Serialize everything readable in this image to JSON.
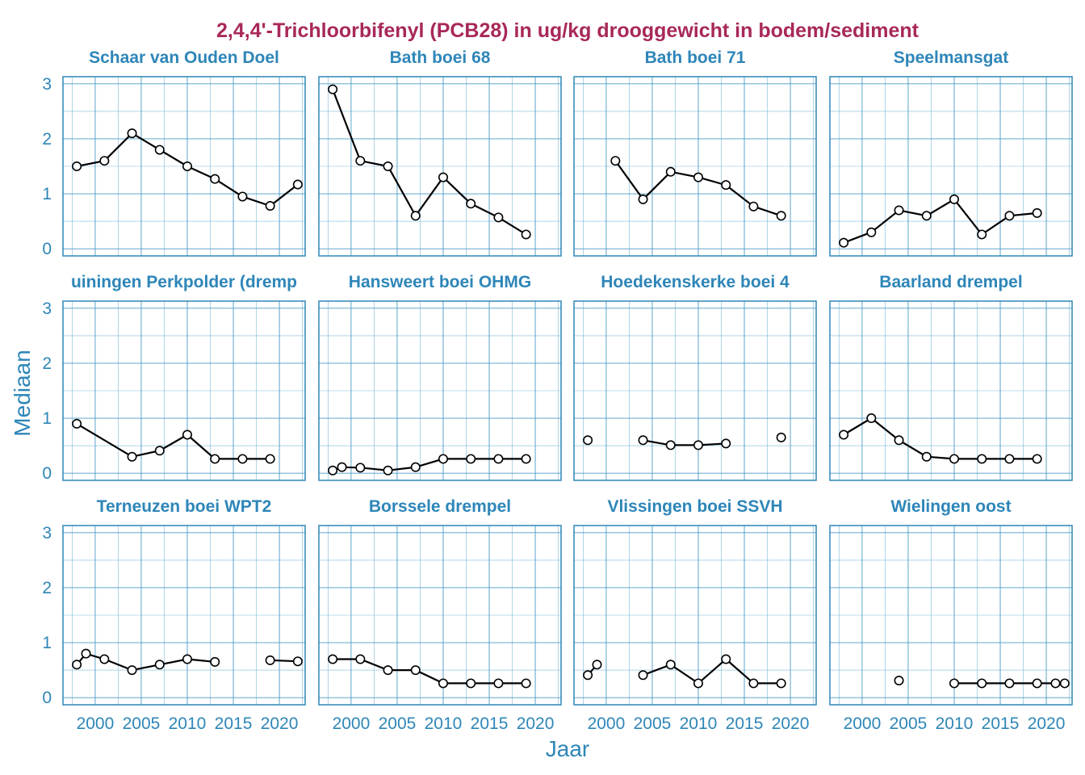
{
  "chart_data": {
    "type": "line",
    "layout": "facet-grid",
    "title": "2,4,4'-Trichloorbifenyl (PCB28) in ug/kg drooggewicht in bodem/sediment",
    "xlabel": "Jaar",
    "ylabel": "Mediaan",
    "xlim": [
      1996.5,
      2022.8
    ],
    "ylim": [
      -0.13,
      3.13
    ],
    "x_ticks": [
      2000,
      2005,
      2010,
      2015,
      2020
    ],
    "y_ticks": [
      0,
      1,
      2,
      3
    ],
    "grid": true,
    "colors": {
      "title": "#a8285a",
      "labels": "#2e86b8",
      "grid": "#4a9bc6",
      "line": "#000000",
      "point_fill": "#ffffff"
    },
    "panels": [
      {
        "name": "Schaar van Ouden Doel",
        "x": [
          1998,
          2001,
          2004,
          2007,
          2010,
          2013,
          2016,
          2019,
          2022
        ],
        "y": [
          1.5,
          1.6,
          2.1,
          1.8,
          1.5,
          1.27,
          0.95,
          0.78,
          1.17
        ]
      },
      {
        "name": "Bath boei 68",
        "x": [
          1998,
          2001,
          2004,
          2007,
          2010,
          2013,
          2016,
          2019
        ],
        "y": [
          2.9,
          1.6,
          1.5,
          0.6,
          1.3,
          0.82,
          0.57,
          0.26
        ]
      },
      {
        "name": "Bath boei 71",
        "x": [
          2001,
          2004,
          2007,
          2010,
          2013,
          2016,
          2019
        ],
        "y": [
          1.6,
          0.9,
          1.4,
          1.3,
          1.16,
          0.77,
          0.6
        ]
      },
      {
        "name": "Speelmansgat",
        "x": [
          1998,
          2001,
          2004,
          2007,
          2010,
          2013,
          2016,
          2019
        ],
        "y": [
          0.11,
          0.3,
          0.7,
          0.6,
          0.9,
          0.26,
          0.6,
          0.65
        ]
      },
      {
        "name": "uiningen Perkpolder (dremp",
        "x": [
          1998,
          2004,
          2007,
          2010,
          2013,
          2016,
          2019
        ],
        "y": [
          0.9,
          0.3,
          0.41,
          0.7,
          0.26,
          0.26,
          0.26
        ]
      },
      {
        "name": "Hansweert boei OHMG",
        "x": [
          1998,
          1999,
          2001,
          2004,
          2007,
          2010,
          2013,
          2016,
          2019
        ],
        "y": [
          0.05,
          0.11,
          0.1,
          0.05,
          0.11,
          0.26,
          0.26,
          0.26,
          0.26
        ]
      },
      {
        "name": "Hoedekenskerke boei 4",
        "x": [
          1998,
          2004,
          2007,
          2010,
          2013,
          2019
        ],
        "y": [
          0.6,
          0.6,
          0.51,
          0.51,
          0.54,
          0.65
        ],
        "breaks_after": [
          0,
          4
        ]
      },
      {
        "name": "Baarland drempel",
        "x": [
          1998,
          2001,
          2004,
          2007,
          2010,
          2013,
          2016,
          2019
        ],
        "y": [
          0.7,
          1.0,
          0.6,
          0.3,
          0.26,
          0.26,
          0.26,
          0.26
        ]
      },
      {
        "name": "Terneuzen boei WPT2",
        "x": [
          1998,
          1999,
          2001,
          2004,
          2007,
          2010,
          2013,
          2019,
          2022
        ],
        "y": [
          0.6,
          0.8,
          0.7,
          0.5,
          0.6,
          0.7,
          0.65,
          0.68,
          0.66
        ],
        "breaks_after": [
          6
        ]
      },
      {
        "name": "Borssele drempel",
        "x": [
          1998,
          2001,
          2004,
          2007,
          2010,
          2013,
          2016,
          2019
        ],
        "y": [
          0.7,
          0.7,
          0.5,
          0.5,
          0.26,
          0.26,
          0.26,
          0.26
        ]
      },
      {
        "name": "Vlissingen boei SSVH",
        "x": [
          1998,
          1999,
          2004,
          2007,
          2010,
          2013,
          2016,
          2019
        ],
        "y": [
          0.41,
          0.6,
          0.41,
          0.6,
          0.26,
          0.7,
          0.26,
          0.26
        ],
        "breaks_after": [
          1
        ]
      },
      {
        "name": "Wielingen oost",
        "x": [
          2004,
          2010,
          2013,
          2016,
          2019,
          2021,
          2022
        ],
        "y": [
          0.31,
          0.26,
          0.26,
          0.26,
          0.26,
          0.26,
          0.26
        ],
        "breaks_after": [
          0
        ]
      }
    ]
  }
}
